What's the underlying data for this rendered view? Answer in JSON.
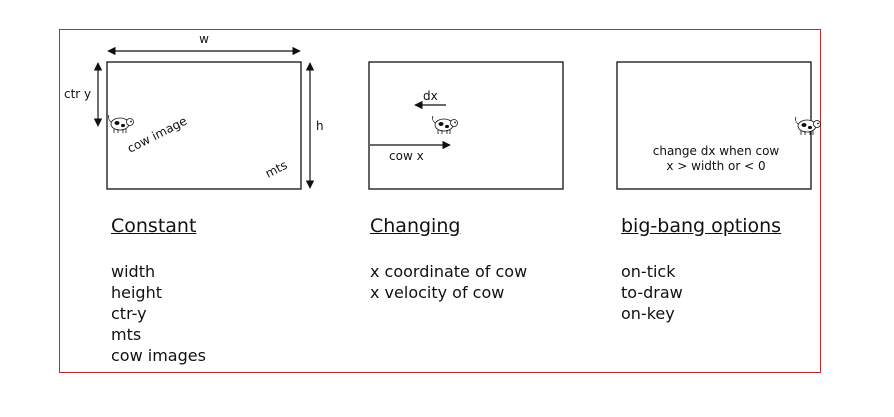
{
  "columns": [
    {
      "heading": "Constant",
      "items": [
        "width",
        "height",
        "ctr-y",
        "mts",
        "cow images"
      ]
    },
    {
      "heading": "Changing",
      "items": [
        "x coordinate of cow",
        "x velocity of cow"
      ]
    },
    {
      "heading": "big-bang options",
      "items": [
        "on-tick",
        "to-draw",
        "on-key"
      ]
    }
  ],
  "panel1": {
    "width_label": "w",
    "height_label": "h",
    "ctr_y_label": "ctr y",
    "cow_image_label": "cow image",
    "mts_label": "mts"
  },
  "panel2": {
    "dx_label": "dx",
    "cow_x_label": "cow x"
  },
  "panel3": {
    "note_line1": "change dx when cow",
    "note_line2": "x > width  or < 0"
  },
  "colors": {
    "frame_border": "#c62828",
    "ink": "#111111"
  }
}
